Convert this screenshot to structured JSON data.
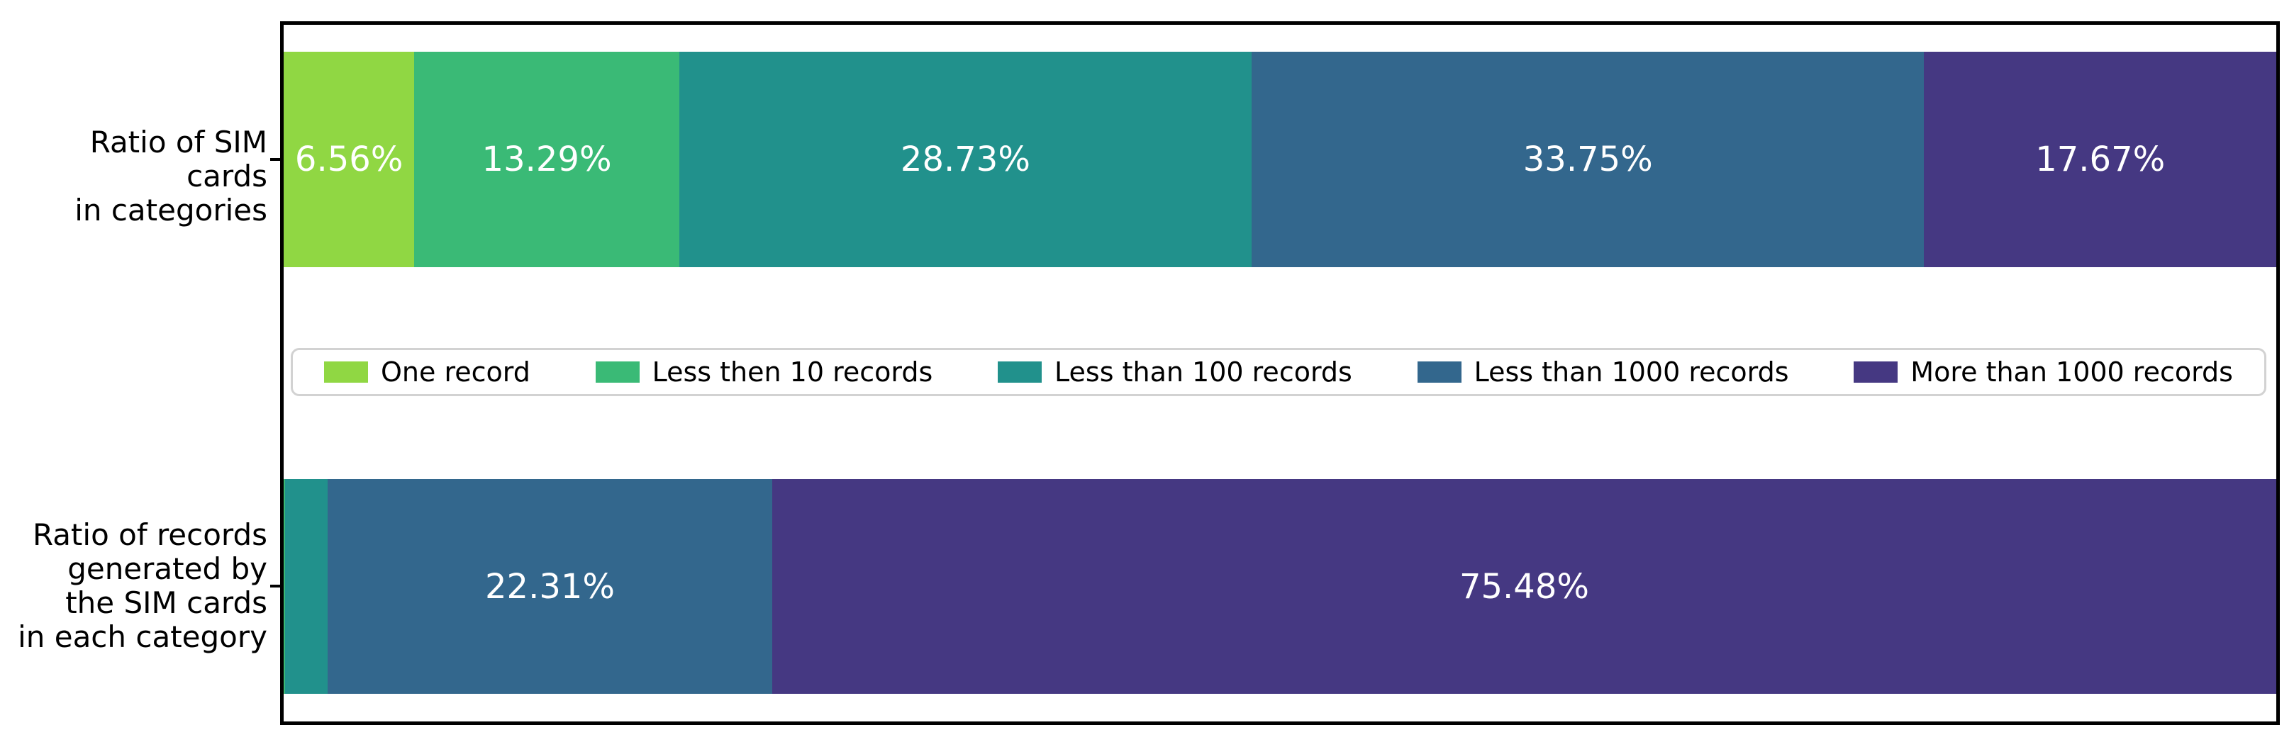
{
  "chart_data": {
    "type": "bar",
    "orientation": "horizontal",
    "stacked": true,
    "title": "",
    "xlabel": "",
    "ylabel": "",
    "x_axis": {
      "min": 0,
      "max": 100,
      "unit": "%",
      "ticks_visible": false
    },
    "grid": false,
    "legend_position": "center-between-bars",
    "categories": [
      {
        "id": "sim-cards",
        "label_lines": [
          "Ratio of SIM cards",
          "in categories"
        ]
      },
      {
        "id": "records",
        "label_lines": [
          "Ratio of records",
          "generated by",
          "the SIM cards",
          "in each category"
        ]
      }
    ],
    "series": [
      {
        "name": "One record",
        "color": "#90d743",
        "values": [
          6.56,
          0.01
        ],
        "labels": [
          "6.56%",
          ""
        ]
      },
      {
        "name": "Less then 10 records",
        "color": "#3aba76",
        "values": [
          13.29,
          0.05
        ],
        "labels": [
          "13.29%",
          ""
        ]
      },
      {
        "name": "Less than 100 records",
        "color": "#21918c",
        "values": [
          28.73,
          2.15
        ],
        "labels": [
          "28.73%",
          ""
        ]
      },
      {
        "name": "Less than 1000 records",
        "color": "#33678d",
        "values": [
          33.75,
          22.31
        ],
        "labels": [
          "33.75%",
          "22.31%"
        ]
      },
      {
        "name": "More than 1000 records",
        "color": "#453882",
        "values": [
          17.67,
          75.48
        ],
        "labels": [
          "17.67%",
          "75.48%"
        ]
      }
    ]
  },
  "colors": {
    "background": "#ffffff",
    "axis_spine": "#000000",
    "legend_border": "#d2d2d2",
    "category_label_text": "#000000",
    "bar_value_text": "#ffffff"
  }
}
